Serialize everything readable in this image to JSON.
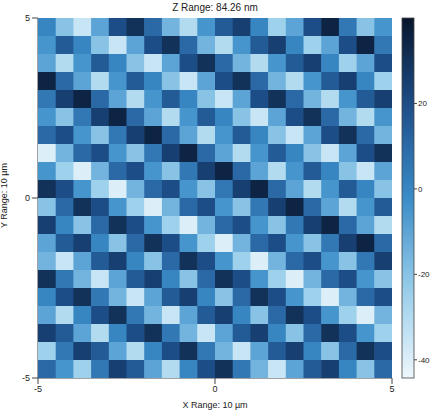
{
  "chart_data": {
    "type": "heatmap",
    "title": "Z Range: 84.26 nm",
    "x_label": "X Range: 10 µm",
    "y_label": "Y Range: 10 µm",
    "xlim": [
      -5,
      5
    ],
    "ylim": [
      -5,
      5
    ],
    "xticks": [
      -5,
      0,
      5
    ],
    "yticks": [
      -5,
      0,
      5
    ],
    "grid": false,
    "x": [
      -4.75,
      -4.25,
      -3.75,
      -3.25,
      -2.75,
      -2.25,
      -1.75,
      -1.25,
      -0.75,
      -0.25,
      0.25,
      0.75,
      1.25,
      1.75,
      2.25,
      2.75,
      3.25,
      3.75,
      4.25,
      4.75
    ],
    "y": [
      4.75,
      4.25,
      3.75,
      3.25,
      2.75,
      2.25,
      1.75,
      1.25,
      0.75,
      0.25,
      -0.25,
      -0.75,
      -1.25,
      -1.75,
      -2.25,
      -2.75,
      -3.25,
      -3.75,
      -4.25,
      -4.75
    ],
    "cells": [
      [
        0,
        -20,
        -35,
        -10,
        20,
        30,
        10,
        -15,
        -30,
        -5,
        15,
        25,
        0,
        -25,
        -10,
        20,
        35,
        5,
        -20,
        -5
      ],
      [
        -5,
        15,
        0,
        -20,
        -35,
        -10,
        20,
        30,
        10,
        -15,
        -30,
        -5,
        15,
        25,
        0,
        -25,
        -10,
        20,
        35,
        5
      ],
      [
        -10,
        -30,
        -5,
        15,
        0,
        -20,
        -35,
        -10,
        20,
        30,
        10,
        -15,
        -30,
        -5,
        15,
        25,
        0,
        -25,
        -10,
        20
      ],
      [
        35,
        10,
        -10,
        -30,
        -5,
        15,
        0,
        -20,
        -35,
        -10,
        20,
        30,
        10,
        -15,
        -30,
        -5,
        15,
        25,
        0,
        -25
      ],
      [
        5,
        25,
        35,
        10,
        -10,
        -30,
        -5,
        15,
        0,
        -20,
        -35,
        -10,
        20,
        30,
        10,
        -15,
        -30,
        -5,
        15,
        25
      ],
      [
        -5,
        -20,
        5,
        25,
        35,
        10,
        -10,
        -30,
        -5,
        15,
        0,
        -20,
        -35,
        -10,
        20,
        30,
        10,
        -15,
        -30,
        -5
      ],
      [
        10,
        20,
        -5,
        -20,
        5,
        25,
        35,
        10,
        -10,
        -30,
        -5,
        15,
        0,
        -20,
        -35,
        -10,
        20,
        30,
        10,
        -15
      ],
      [
        -40,
        -15,
        10,
        20,
        -5,
        -20,
        5,
        25,
        35,
        10,
        -10,
        -30,
        -5,
        15,
        0,
        -20,
        -35,
        -10,
        20,
        30
      ],
      [
        -5,
        -25,
        -40,
        -15,
        10,
        20,
        -5,
        -20,
        5,
        25,
        35,
        10,
        -10,
        -30,
        -5,
        15,
        0,
        -20,
        -35,
        -10
      ],
      [
        30,
        20,
        -5,
        -25,
        -40,
        -15,
        10,
        20,
        -5,
        -20,
        5,
        25,
        35,
        10,
        -10,
        -30,
        -5,
        15,
        0,
        -20
      ],
      [
        -20,
        10,
        30,
        20,
        -5,
        -25,
        -40,
        -15,
        10,
        20,
        -5,
        -20,
        5,
        25,
        35,
        10,
        -10,
        -30,
        -5,
        15
      ],
      [
        25,
        0,
        -20,
        10,
        30,
        20,
        -5,
        -25,
        -40,
        -15,
        10,
        20,
        -5,
        -20,
        5,
        25,
        35,
        10,
        -10,
        -30
      ],
      [
        -10,
        15,
        25,
        0,
        -20,
        10,
        30,
        20,
        -5,
        -25,
        -40,
        -15,
        10,
        20,
        -5,
        -20,
        5,
        25,
        35,
        10
      ],
      [
        -15,
        -35,
        -10,
        15,
        25,
        0,
        -20,
        10,
        30,
        20,
        -5,
        -25,
        -40,
        -15,
        10,
        20,
        -5,
        -20,
        5,
        25
      ],
      [
        30,
        5,
        -15,
        -35,
        -10,
        15,
        25,
        0,
        -20,
        10,
        30,
        20,
        -5,
        -25,
        -40,
        -15,
        10,
        20,
        -5,
        -20
      ],
      [
        0,
        20,
        30,
        5,
        -15,
        -35,
        -10,
        15,
        25,
        0,
        -20,
        10,
        30,
        20,
        -5,
        -25,
        -40,
        -15,
        10,
        20
      ],
      [
        -10,
        -30,
        0,
        20,
        30,
        5,
        -15,
        -35,
        -10,
        15,
        25,
        0,
        -20,
        10,
        30,
        20,
        -5,
        -25,
        -40,
        -15
      ],
      [
        25,
        15,
        -10,
        -30,
        0,
        20,
        30,
        5,
        -15,
        -35,
        -10,
        15,
        25,
        0,
        -20,
        10,
        30,
        20,
        -5,
        -25
      ],
      [
        -25,
        5,
        25,
        15,
        -10,
        -30,
        0,
        20,
        30,
        5,
        -15,
        -35,
        -10,
        15,
        25,
        0,
        -20,
        10,
        30,
        20
      ],
      [
        10,
        -5,
        -25,
        5,
        25,
        15,
        -10,
        -30,
        0,
        20,
        30,
        5,
        -15,
        -35,
        -10,
        15,
        25,
        0,
        -20,
        10
      ]
    ],
    "colorbar": {
      "range": [
        -44.26,
        40
      ],
      "ticks": [
        -40,
        -20,
        0,
        20
      ]
    }
  }
}
